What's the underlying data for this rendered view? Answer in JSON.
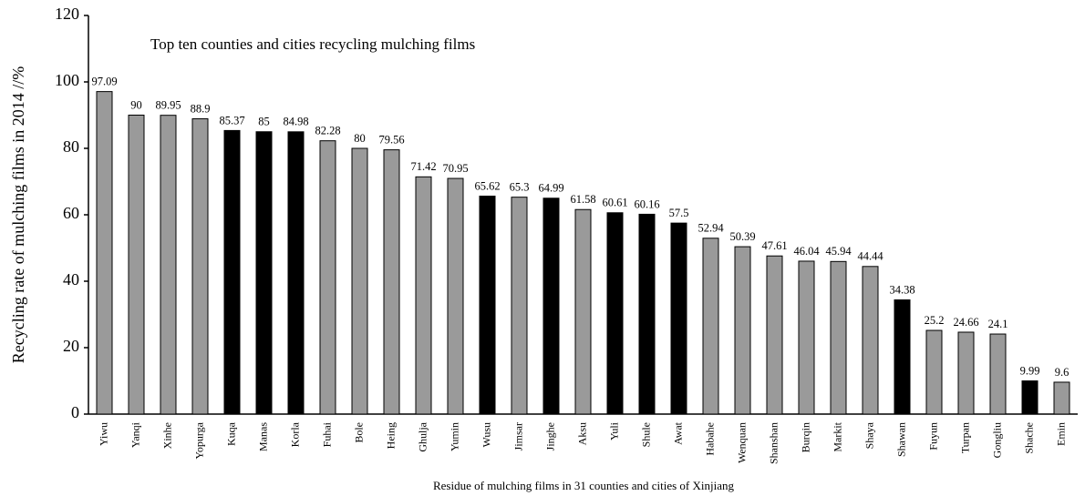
{
  "chart_data": {
    "type": "bar",
    "title": "Top ten counties and cities recycling mulching films",
    "x_label": "Residue of mulching films in 31 counties and cities of Xinjiang",
    "y_label": "Recycling rate of mulching films in 2014 //%",
    "categories": [
      "Yiwu",
      "Yanqi",
      "Xinhe",
      "Yopurga",
      "Kuqa",
      "Manas",
      "Korla",
      "Fuhai",
      "Bole",
      "Heing",
      "Ghulja",
      "Yumin",
      "Wusu",
      "Jimsar",
      "Jinghe",
      "Aksu",
      "Yuli",
      "Shule",
      "Awat",
      "Habahe",
      "Wenquan",
      "Shanshan",
      "Burqin",
      "Markit",
      "Shaya",
      "Shawan",
      "Fuyun",
      "Turpan",
      "Gongliu",
      "Shache",
      "Emin"
    ],
    "values": [
      97.09,
      90,
      89.95,
      88.9,
      85.37,
      85,
      84.98,
      82.28,
      80,
      79.56,
      71.42,
      70.95,
      65.62,
      65.3,
      64.99,
      61.58,
      60.61,
      60.16,
      57.5,
      52.94,
      50.39,
      47.61,
      46.04,
      45.94,
      44.44,
      34.38,
      25.2,
      24.66,
      24.1,
      9.99,
      9.6
    ],
    "colors": [
      "#9a9a9a",
      "#9a9a9a",
      "#9a9a9a",
      "#9a9a9a",
      "#000000",
      "#000000",
      "#000000",
      "#9a9a9a",
      "#9a9a9a",
      "#9a9a9a",
      "#9a9a9a",
      "#9a9a9a",
      "#000000",
      "#9a9a9a",
      "#000000",
      "#9a9a9a",
      "#000000",
      "#000000",
      "#000000",
      "#9a9a9a",
      "#9a9a9a",
      "#9a9a9a",
      "#9a9a9a",
      "#9a9a9a",
      "#9a9a9a",
      "#000000",
      "#9a9a9a",
      "#9a9a9a",
      "#9a9a9a",
      "#000000",
      "#9a9a9a"
    ],
    "ylim": [
      0,
      120
    ],
    "yticks": [
      0,
      20,
      40,
      60,
      80,
      100,
      120
    ],
    "grid": false
  }
}
